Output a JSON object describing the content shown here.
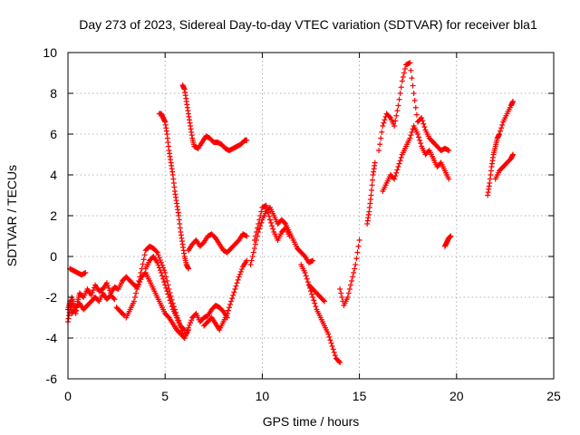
{
  "chart_data": {
    "type": "scatter",
    "title": "Day 273 of 2023, Sidereal Day-to-day VTEC variation (SDTVAR) for receiver bla1",
    "xlabel": "GPS time / hours",
    "ylabel": "SDTVAR / TECUs",
    "xlim": [
      0,
      25
    ],
    "ylim": [
      -6,
      10
    ],
    "xticks": [
      0,
      5,
      10,
      15,
      20,
      25
    ],
    "yticks": [
      -6,
      -4,
      -2,
      0,
      2,
      4,
      6,
      8,
      10
    ],
    "grid": true,
    "marker": "+",
    "series_color": "#ff0000",
    "segments": [
      {
        "name": "arc-1a",
        "x": [
          0,
          0.1,
          0.2,
          0.3,
          0.4,
          0.5,
          0.6,
          0.8,
          1.0,
          1.2,
          1.4,
          1.6,
          1.8,
          2.0,
          2.2,
          2.4,
          2.6,
          2.8,
          3.0,
          3.2,
          3.4,
          3.6,
          3.8,
          4.0,
          4.2,
          4.4,
          4.6,
          4.8,
          5.0,
          5.2,
          5.4,
          5.6,
          5.8,
          6.0,
          6.2
        ],
        "y": [
          -3.2,
          -2.6,
          -2.0,
          -2.4,
          -2.8,
          -2.2,
          -1.8,
          -2.0,
          -1.6,
          -1.9,
          -1.4,
          -1.7,
          -1.6,
          -1.3,
          -1.8,
          -1.5,
          -1.6,
          -1.2,
          -1.0,
          -1.2,
          -1.4,
          -1.5,
          -1.0,
          -0.8,
          -1.2,
          -1.6,
          -2.0,
          -2.4,
          -2.8,
          -3.0,
          -3.3,
          -3.6,
          -3.8,
          -4.0,
          -3.6
        ]
      },
      {
        "name": "arc-1b",
        "x": [
          0,
          0.1,
          0.2,
          0.4,
          0.6,
          0.8,
          1.0,
          1.2,
          1.4,
          1.6,
          1.8,
          2.0,
          2.2,
          2.4
        ],
        "y": [
          -2.6,
          -2.2,
          -2.8,
          -2.5,
          -2.3,
          -2.6,
          -2.4,
          -2.2,
          -2.0,
          -2.2,
          -1.8,
          -2.1,
          -1.9,
          -2.1
        ]
      },
      {
        "name": "arc-1c",
        "x": [
          0.1,
          0.3,
          0.5,
          0.7,
          0.9
        ],
        "y": [
          -0.6,
          -0.7,
          -0.8,
          -0.9,
          -0.8
        ]
      },
      {
        "name": "arc-1d",
        "x": [
          2.5,
          2.7,
          2.9
        ],
        "y": [
          -2.5,
          -2.7,
          -2.9
        ]
      },
      {
        "name": "arc-2",
        "x": [
          3.0,
          3.2,
          3.4,
          3.6,
          3.8,
          4.0,
          4.2,
          4.4,
          4.6,
          4.8,
          5.0,
          5.2,
          5.4,
          5.6,
          5.8,
          6.0
        ],
        "y": [
          -3.0,
          -2.6,
          -2.2,
          -1.4,
          -0.6,
          0.3,
          0.5,
          0.4,
          0.2,
          -0.3,
          -0.8,
          -1.6,
          -2.3,
          -2.9,
          -3.4,
          -3.6
        ]
      },
      {
        "name": "arc-3",
        "x": [
          4.0,
          4.2,
          4.4,
          4.6,
          4.8,
          5.0,
          5.2,
          5.4,
          5.6,
          5.8,
          6.0,
          6.2,
          6.4,
          6.6,
          6.8,
          7.0,
          7.2,
          7.4,
          7.6,
          7.8,
          8.0,
          8.2
        ],
        "y": [
          -0.6,
          -0.2,
          0.0,
          -0.3,
          -0.8,
          -1.4,
          -2.0,
          -2.6,
          -3.0,
          -3.5,
          -4.0,
          -3.5,
          -3.0,
          -2.8,
          -3.2,
          -3.0,
          -2.9,
          -2.6,
          -2.4,
          -2.5,
          -2.7,
          -3.0
        ]
      },
      {
        "name": "arc-4",
        "x": [
          4.7,
          4.8,
          4.9,
          5.0,
          5.1,
          5.2,
          5.3,
          5.4,
          5.5,
          5.6,
          5.7,
          5.8,
          5.9,
          6.0,
          6.1,
          6.2
        ],
        "y": [
          7.0,
          7.0,
          6.8,
          6.6,
          6.0,
          5.2,
          4.6,
          4.0,
          3.2,
          2.6,
          2.0,
          1.2,
          0.6,
          0.0,
          -0.4,
          -0.6
        ]
      },
      {
        "name": "arc-5",
        "x": [
          5.9,
          6.0,
          6.1,
          6.2,
          6.3,
          6.4,
          6.5,
          6.7,
          6.9,
          7.1,
          7.3,
          7.5,
          7.7,
          7.9,
          8.1,
          8.3,
          8.5,
          8.7,
          8.9,
          9.1,
          9.2
        ],
        "y": [
          8.4,
          8.2,
          7.6,
          7.0,
          6.4,
          5.8,
          5.4,
          5.3,
          5.6,
          5.9,
          5.8,
          5.6,
          5.6,
          5.5,
          5.3,
          5.2,
          5.3,
          5.4,
          5.5,
          5.7,
          5.7
        ]
      },
      {
        "name": "arc-6",
        "x": [
          6.2,
          6.4,
          6.6,
          6.8,
          7.0,
          7.2,
          7.4,
          7.6,
          7.8,
          8.0,
          8.2,
          8.4,
          8.6,
          8.8,
          9.0,
          9.2
        ],
        "y": [
          0.3,
          0.6,
          0.8,
          0.5,
          0.7,
          1.0,
          1.1,
          0.9,
          0.6,
          0.3,
          0.2,
          0.4,
          0.6,
          0.8,
          1.1,
          1.0
        ]
      },
      {
        "name": "arc-7",
        "x": [
          7.0,
          7.2,
          7.4,
          7.6,
          7.8,
          8.0,
          8.2,
          8.4,
          8.6,
          8.8,
          9.0,
          9.2
        ],
        "y": [
          -3.4,
          -3.2,
          -3.0,
          -3.3,
          -3.6,
          -3.2,
          -2.8,
          -2.2,
          -1.6,
          -1.0,
          -0.5,
          -0.2
        ]
      },
      {
        "name": "arc-8",
        "x": [
          9.4,
          9.6,
          9.8,
          10.0,
          10.2,
          10.4,
          10.6,
          10.8,
          11.0,
          11.2,
          11.4,
          11.6,
          11.8,
          12.0,
          12.2,
          12.4,
          12.6
        ],
        "y": [
          -0.4,
          0.4,
          1.2,
          1.8,
          2.2,
          2.4,
          2.0,
          1.6,
          1.8,
          1.6,
          1.2,
          0.8,
          0.4,
          0.2,
          0.0,
          -0.3,
          -0.2
        ]
      },
      {
        "name": "arc-9",
        "x": [
          9.6,
          9.8,
          10.0,
          10.2,
          10.4,
          10.6,
          10.8,
          11.0,
          11.2,
          11.4
        ],
        "y": [
          0.8,
          1.6,
          2.4,
          2.5,
          1.8,
          1.2,
          0.8,
          1.2,
          1.4,
          1.0
        ]
      },
      {
        "name": "arc-10",
        "x": [
          12.0,
          12.2,
          12.4,
          12.6,
          12.8,
          13.0,
          13.2,
          13.4,
          13.6,
          13.8,
          14.0
        ],
        "y": [
          -0.4,
          -0.8,
          -1.4,
          -2.0,
          -2.6,
          -3.0,
          -3.4,
          -3.8,
          -4.4,
          -5.0,
          -5.2
        ]
      },
      {
        "name": "arc-11",
        "x": [
          12.4,
          12.6,
          12.8,
          13.0,
          13.2
        ],
        "y": [
          -1.4,
          -1.6,
          -1.8,
          -2.0,
          -2.2
        ]
      },
      {
        "name": "arc-12",
        "x": [
          14.0,
          14.2,
          14.4,
          14.6,
          14.8,
          15.0
        ],
        "y": [
          -1.6,
          -2.4,
          -2.0,
          -1.2,
          -0.4,
          0.8
        ]
      },
      {
        "name": "arc-13",
        "x": [
          15.4,
          15.5,
          15.6,
          15.7,
          15.8
        ],
        "y": [
          1.6,
          2.2,
          3.0,
          4.0,
          4.6
        ]
      },
      {
        "name": "arc-14",
        "x": [
          16.0,
          16.2,
          16.4,
          16.6,
          16.8,
          17.0,
          17.2,
          17.4,
          17.6,
          17.8,
          18.0,
          18.2,
          18.4,
          18.6,
          18.8,
          19.0,
          19.2,
          19.4,
          19.6
        ],
        "y": [
          5.2,
          6.4,
          7.0,
          6.8,
          6.4,
          7.4,
          8.6,
          9.4,
          9.5,
          8.0,
          6.6,
          6.8,
          6.2,
          5.8,
          5.6,
          5.4,
          5.2,
          5.3,
          5.2
        ]
      },
      {
        "name": "arc-15",
        "x": [
          16.2,
          16.4,
          16.6,
          16.8,
          17.0,
          17.2,
          17.4,
          17.6,
          17.8,
          18.0,
          18.2,
          18.4,
          18.6,
          18.8,
          19.0,
          19.2,
          19.4,
          19.6
        ],
        "y": [
          3.2,
          3.6,
          4.0,
          3.8,
          4.4,
          5.0,
          5.4,
          5.8,
          6.4,
          6.0,
          5.4,
          5.0,
          5.2,
          4.8,
          4.4,
          4.6,
          4.2,
          3.8
        ]
      },
      {
        "name": "arc-16",
        "x": [
          19.4,
          19.5,
          19.6,
          19.7
        ],
        "y": [
          0.5,
          0.7,
          0.9,
          1.0
        ]
      },
      {
        "name": "arc-17",
        "x": [
          21.6,
          21.7,
          21.8,
          21.9,
          22.0,
          22.1,
          22.2,
          22.4,
          22.6,
          22.8,
          22.9
        ],
        "y": [
          3.0,
          3.6,
          4.4,
          5.0,
          5.4,
          5.8,
          6.0,
          6.6,
          7.0,
          7.4,
          7.6
        ]
      },
      {
        "name": "arc-18",
        "x": [
          22.0,
          22.2,
          22.4,
          22.6,
          22.8,
          22.9
        ],
        "y": [
          3.8,
          4.2,
          4.4,
          4.6,
          4.8,
          5.0
        ]
      }
    ]
  }
}
